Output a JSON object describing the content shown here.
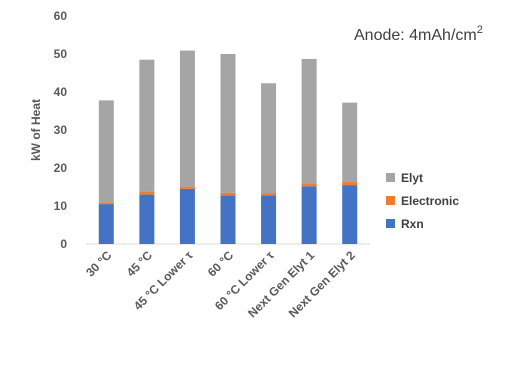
{
  "chart_data": {
    "type": "bar",
    "stacked": true,
    "categories": [
      "30 °C",
      "45 °C",
      "45 °C Lower τ",
      "60 °C",
      "60 °C Lower τ",
      "Next Gen Elyt 1",
      "Next Gen Elyt 2"
    ],
    "series": [
      {
        "name": "Rxn",
        "color": "#4472C4",
        "values": [
          10.5,
          13.0,
          14.5,
          12.8,
          12.8,
          15.2,
          15.5
        ]
      },
      {
        "name": "Electronic",
        "color": "#ED7D31",
        "values": [
          0.5,
          0.7,
          0.6,
          0.7,
          0.6,
          0.7,
          0.8
        ]
      },
      {
        "name": "Elyt",
        "color": "#A5A5A5",
        "values": [
          26.8,
          34.8,
          35.8,
          36.5,
          28.9,
          32.8,
          20.9
        ]
      }
    ],
    "ylabel": "kW of Heat",
    "xlabel": "",
    "ylim": [
      0,
      60
    ],
    "yticks": [
      0,
      10,
      20,
      30,
      40,
      50,
      60
    ],
    "grid": false,
    "legend_position": "right",
    "legend_order": [
      "Elyt",
      "Electronic",
      "Rxn"
    ],
    "annotation": {
      "text": "Anode: 4mAh/cm",
      "superscript": "2"
    }
  }
}
